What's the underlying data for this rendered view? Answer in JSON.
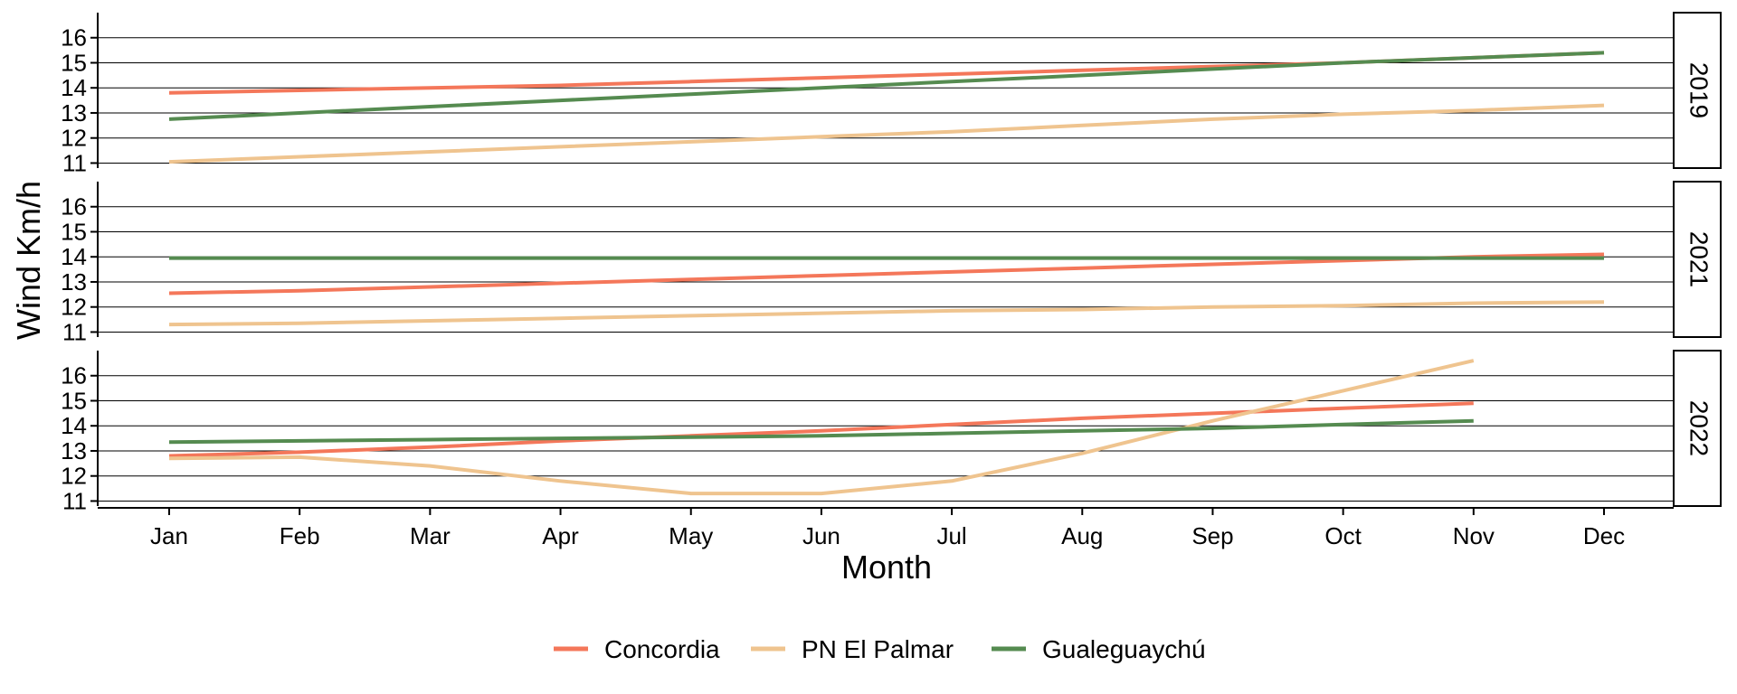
{
  "chart_data": {
    "type": "line",
    "xlabel": "Month",
    "ylabel": "Wind Km/h",
    "ylim": [
      10.8,
      17.0
    ],
    "yticks": [
      11,
      12,
      13,
      14,
      15,
      16
    ],
    "x_categories": [
      "Jan",
      "Feb",
      "Mar",
      "Apr",
      "May",
      "Jun",
      "Jul",
      "Aug",
      "Sep",
      "Oct",
      "Nov",
      "Dec"
    ],
    "grid": "horizontal",
    "legend_position": "bottom",
    "series_styles": [
      {
        "name": "Concordia",
        "color": "#f4775a"
      },
      {
        "name": "PN El Palmar",
        "color": "#efc48f"
      },
      {
        "name": "Gualeguaychú",
        "color": "#558b50"
      }
    ],
    "panels": [
      {
        "label": "2019",
        "series": [
          {
            "name": "Concordia",
            "values": [
              13.8,
              13.9,
              14.0,
              14.1,
              14.25,
              14.4,
              14.55,
              14.7,
              14.85,
              15.0,
              15.2,
              15.4
            ]
          },
          {
            "name": "PN El Palmar",
            "values": [
              11.05,
              11.25,
              11.45,
              11.65,
              11.85,
              12.05,
              12.25,
              12.5,
              12.75,
              12.95,
              13.1,
              13.3
            ]
          },
          {
            "name": "Gualeguaychú",
            "values": [
              12.75,
              13.0,
              13.25,
              13.5,
              13.75,
              14.0,
              14.25,
              14.5,
              14.75,
              15.0,
              15.2,
              15.4
            ]
          }
        ]
      },
      {
        "label": "2021",
        "series": [
          {
            "name": "Concordia",
            "values": [
              12.55,
              12.65,
              12.8,
              12.95,
              13.1,
              13.25,
              13.4,
              13.55,
              13.7,
              13.85,
              14.0,
              14.1
            ]
          },
          {
            "name": "PN El Palmar",
            "values": [
              11.3,
              11.35,
              11.45,
              11.55,
              11.65,
              11.75,
              11.85,
              11.9,
              12.0,
              12.05,
              12.15,
              12.2
            ]
          },
          {
            "name": "Gualeguaychú",
            "values": [
              13.95,
              13.95,
              13.95,
              13.95,
              13.95,
              13.95,
              13.95,
              13.95,
              13.95,
              13.95,
              13.95,
              13.95
            ]
          }
        ]
      },
      {
        "label": "2022",
        "series": [
          {
            "name": "Concordia",
            "values": [
              12.8,
              12.95,
              13.15,
              13.4,
              13.6,
              13.8,
              14.05,
              14.3,
              14.5,
              14.7,
              14.9
            ]
          },
          {
            "name": "PN El Palmar",
            "values": [
              12.7,
              12.75,
              12.4,
              11.8,
              11.3,
              11.3,
              11.8,
              12.9,
              14.2,
              15.4,
              16.6
            ]
          },
          {
            "name": "Gualeguaychú",
            "values": [
              13.35,
              13.4,
              13.45,
              13.5,
              13.55,
              13.6,
              13.7,
              13.8,
              13.9,
              14.05,
              14.2
            ]
          }
        ]
      }
    ]
  }
}
